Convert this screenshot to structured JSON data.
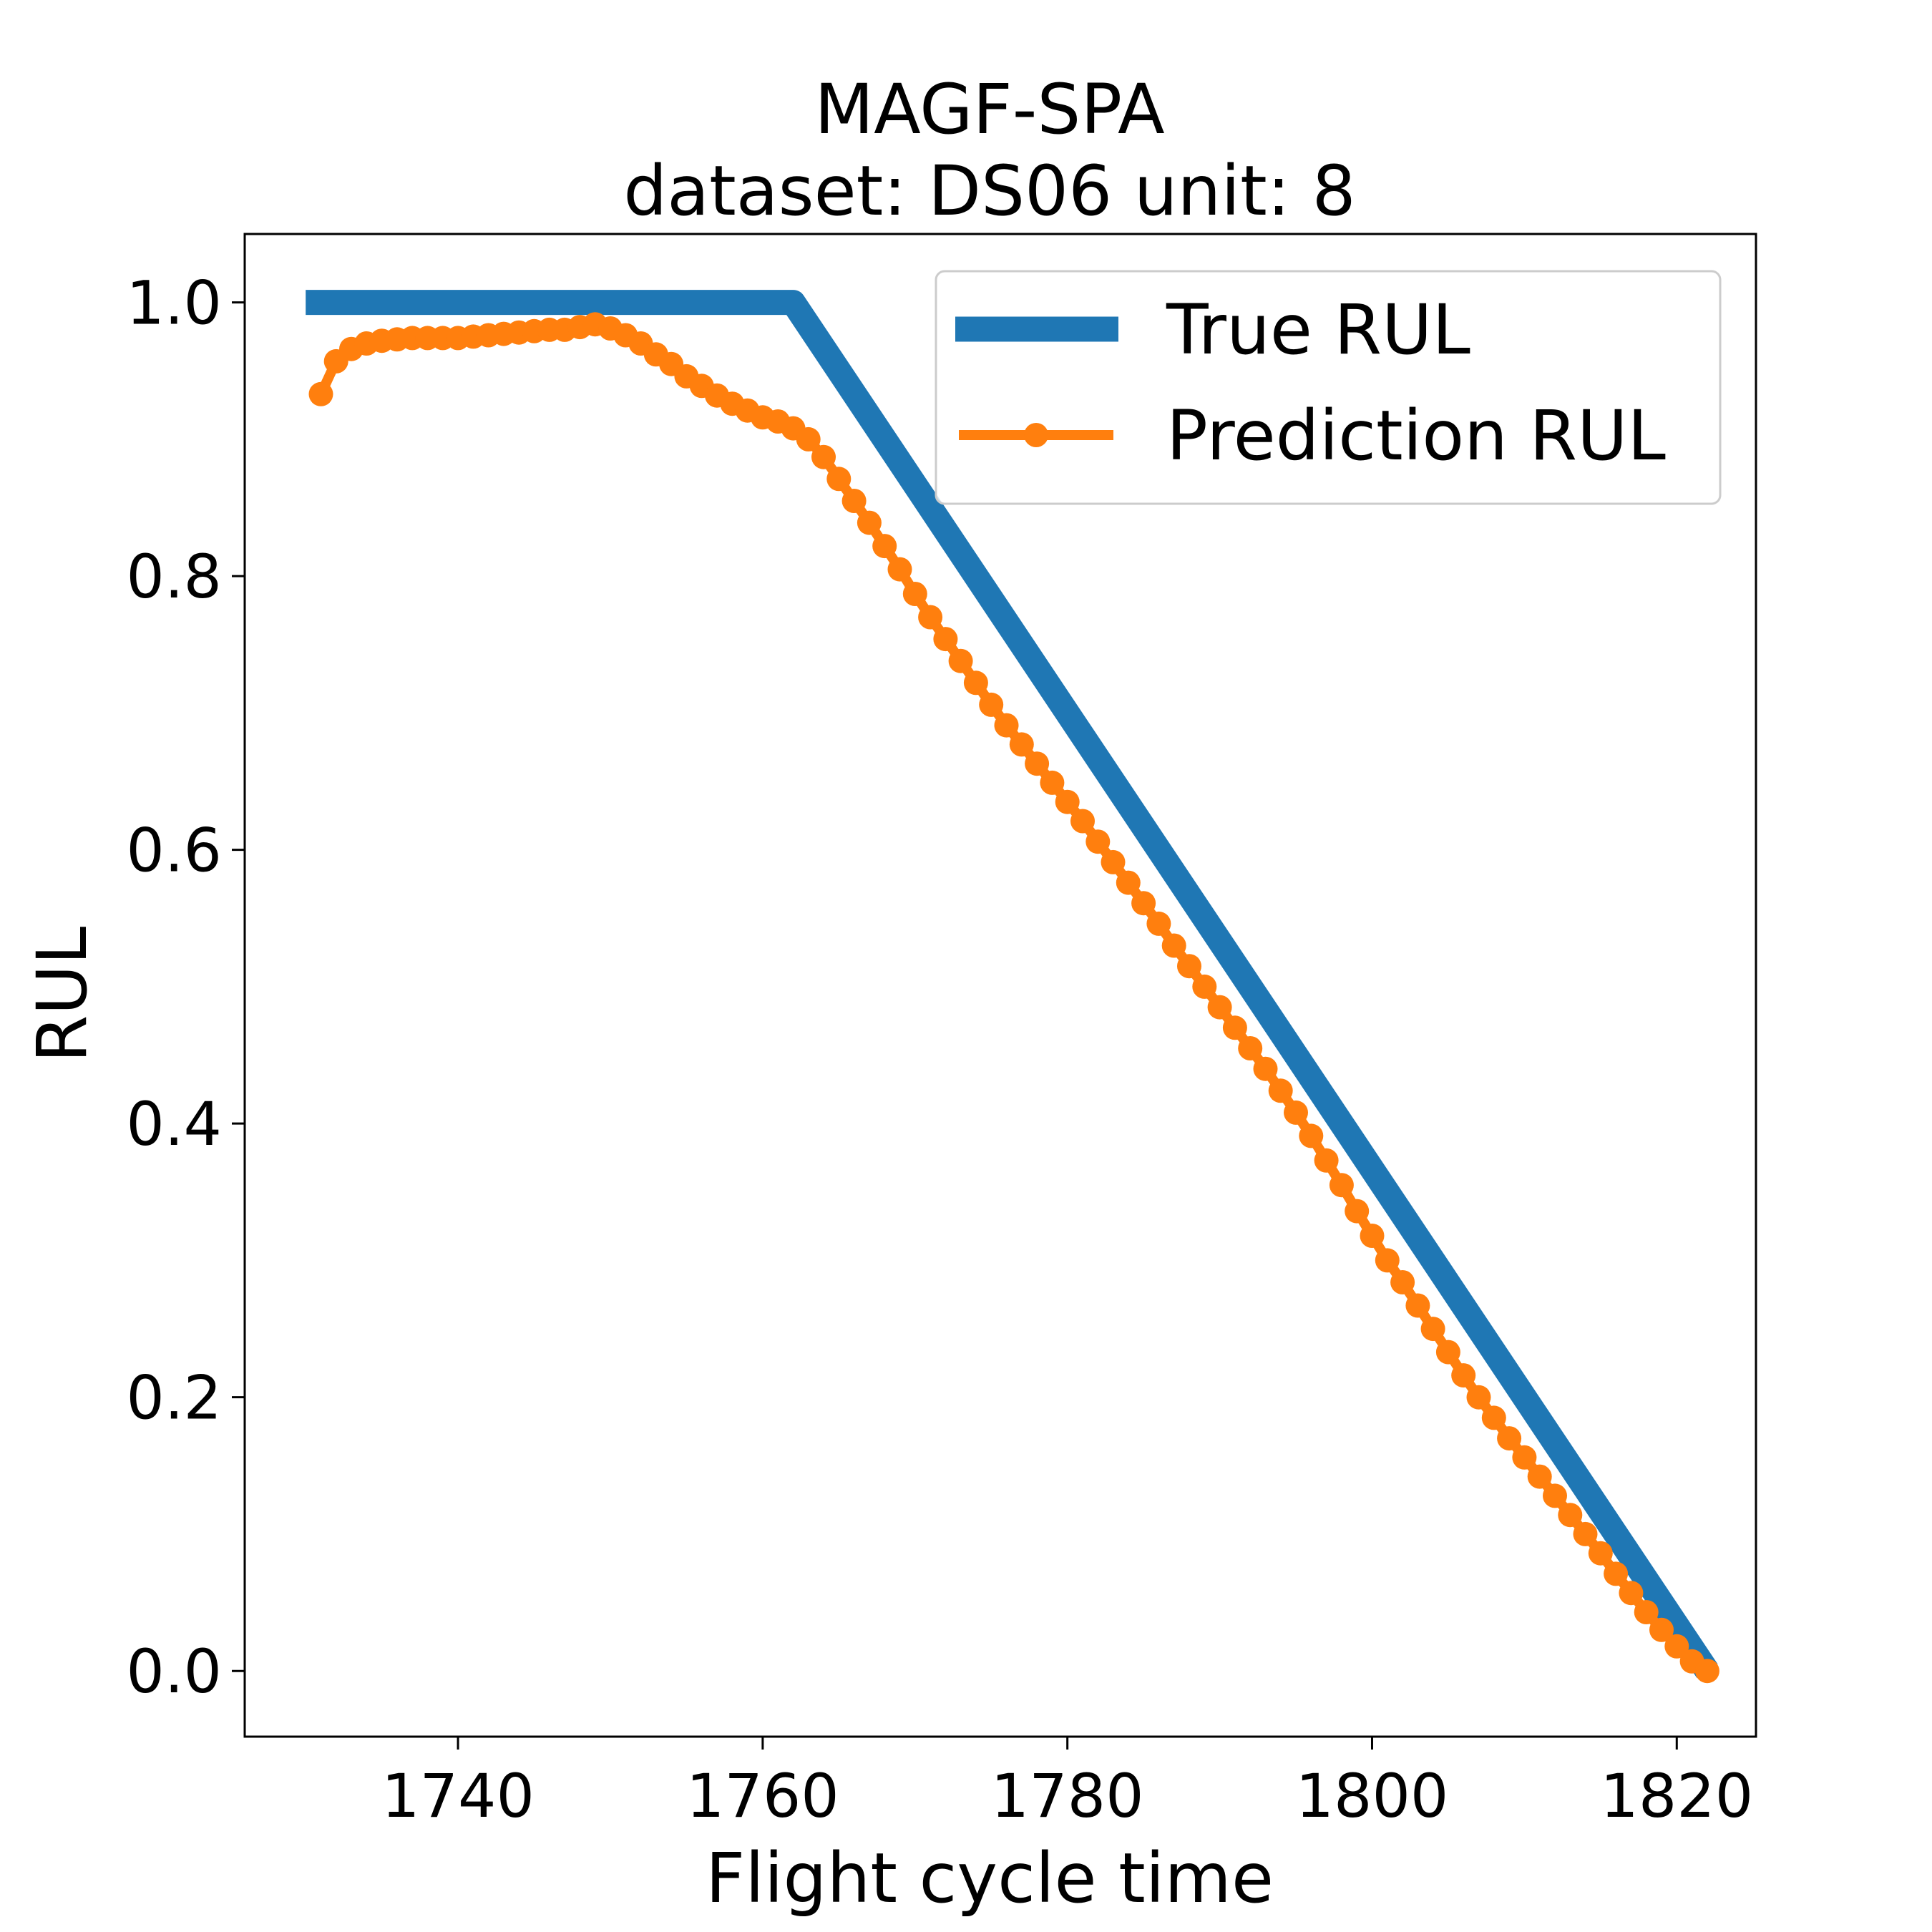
{
  "chart_data": {
    "type": "line",
    "title": "MAGF-SPA",
    "subtitle": "dataset: DS06 unit: 8",
    "xlabel": "Flight cycle time",
    "ylabel": "RUL",
    "xlim": [
      1726,
      1825.2
    ],
    "ylim": [
      -0.048,
      1.05
    ],
    "xticks": [
      1740,
      1760,
      1780,
      1800,
      1820
    ],
    "xtick_labels": [
      "1740",
      "1760",
      "1780",
      "1800",
      "1820"
    ],
    "yticks": [
      0.0,
      0.2,
      0.4,
      0.6,
      0.8,
      1.0
    ],
    "ytick_labels": [
      "0.0",
      "0.2",
      "0.4",
      "0.6",
      "0.8",
      "1.0"
    ],
    "grid": false,
    "legend_position": "top-right",
    "series": [
      {
        "name": "True RUL",
        "color": "#1f77b4",
        "style": "line",
        "x": [
          1730,
          1762,
          1822
        ],
        "y": [
          1.0,
          1.0,
          0.0
        ]
      },
      {
        "name": "Prediction RUL",
        "color": "#ff7f0e",
        "style": "line-markers",
        "x": [
          1731,
          1732,
          1733,
          1734,
          1735,
          1736,
          1737,
          1738,
          1739,
          1740,
          1741,
          1742,
          1743,
          1744,
          1745,
          1746,
          1747,
          1748,
          1749,
          1750,
          1751,
          1752,
          1753,
          1754,
          1755,
          1756,
          1757,
          1758,
          1759,
          1760,
          1761,
          1762,
          1763,
          1764,
          1765,
          1766,
          1767,
          1768,
          1769,
          1770,
          1771,
          1772,
          1773,
          1774,
          1775,
          1776,
          1777,
          1778,
          1779,
          1780,
          1781,
          1782,
          1783,
          1784,
          1785,
          1786,
          1787,
          1788,
          1789,
          1790,
          1791,
          1792,
          1793,
          1794,
          1795,
          1796,
          1797,
          1798,
          1799,
          1800,
          1801,
          1802,
          1803,
          1804,
          1805,
          1806,
          1807,
          1808,
          1809,
          1810,
          1811,
          1812,
          1813,
          1814,
          1815,
          1816,
          1817,
          1818,
          1819,
          1820,
          1821,
          1822
        ],
        "y": [
          0.933,
          0.957,
          0.966,
          0.97,
          0.972,
          0.973,
          0.974,
          0.974,
          0.974,
          0.974,
          0.975,
          0.976,
          0.977,
          0.978,
          0.979,
          0.98,
          0.98,
          0.982,
          0.984,
          0.981,
          0.976,
          0.97,
          0.962,
          0.955,
          0.946,
          0.939,
          0.932,
          0.926,
          0.921,
          0.916,
          0.913,
          0.908,
          0.9,
          0.887,
          0.871,
          0.855,
          0.839,
          0.822,
          0.805,
          0.787,
          0.77,
          0.754,
          0.738,
          0.722,
          0.706,
          0.691,
          0.677,
          0.663,
          0.649,
          0.635,
          0.621,
          0.606,
          0.591,
          0.576,
          0.561,
          0.546,
          0.53,
          0.515,
          0.5,
          0.485,
          0.47,
          0.455,
          0.44,
          0.424,
          0.408,
          0.391,
          0.373,
          0.355,
          0.336,
          0.318,
          0.3,
          0.284,
          0.267,
          0.25,
          0.233,
          0.216,
          0.2,
          0.185,
          0.17,
          0.156,
          0.142,
          0.128,
          0.114,
          0.1,
          0.086,
          0.071,
          0.057,
          0.043,
          0.03,
          0.018,
          0.007,
          0.0
        ]
      }
    ]
  }
}
